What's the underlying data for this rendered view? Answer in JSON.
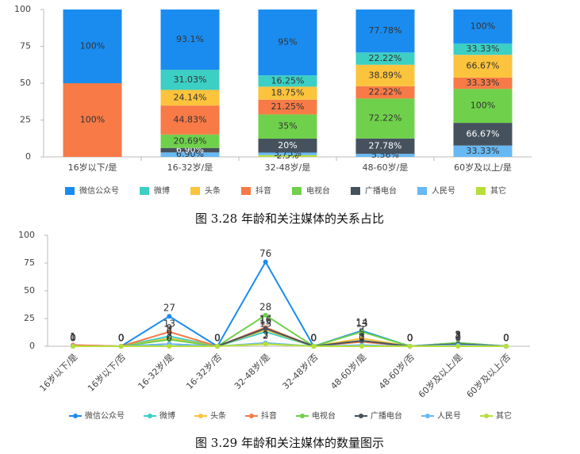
{
  "chart_data": [
    {
      "type": "stacked_percent_bar",
      "title": "图 3.28  年龄和关注媒体的关系占比",
      "categories": [
        "16岁以下/是",
        "16-32岁/是",
        "32-48岁/是",
        "48-60岁/是",
        "60岁及以上/是"
      ],
      "ylim": [
        0,
        100
      ],
      "yticks": [
        0,
        25,
        50,
        75,
        100
      ],
      "grid": false,
      "series": [
        {
          "name": "微信公众号",
          "color": "#1a8cf0",
          "values": [
            100,
            93.1,
            95,
            77.78,
            100
          ],
          "value_labels": [
            "100%",
            "93.1%",
            "95%",
            "77.78%",
            "100%"
          ]
        },
        {
          "name": "微博",
          "color": "#3ccfc4",
          "values": [
            null,
            31.03,
            16.25,
            22.22,
            33.33
          ],
          "value_labels": [
            null,
            "31.03%",
            "16.25%",
            "22.22%",
            "33.33%"
          ]
        },
        {
          "name": "头条",
          "color": "#fcc33c",
          "values": [
            null,
            24.14,
            18.75,
            38.89,
            66.67
          ],
          "value_labels": [
            null,
            "24.14%",
            "18.75%",
            "38.89%",
            "66.67%"
          ]
        },
        {
          "name": "抖音",
          "color": "#f77a47",
          "values": [
            100,
            44.83,
            21.25,
            22.22,
            33.33
          ],
          "value_labels": [
            "100%",
            "44.83%",
            "21.25%",
            "22.22%",
            "33.33%"
          ]
        },
        {
          "name": "电视台",
          "color": "#6fd14b",
          "values": [
            null,
            20.69,
            35,
            72.22,
            100
          ],
          "value_labels": [
            null,
            "20.69%",
            "35%",
            "72.22%",
            "100%"
          ]
        },
        {
          "name": "广播电台",
          "color": "#45525e",
          "values": [
            null,
            6.9,
            20,
            27.78,
            66.67
          ],
          "value_labels": [
            null,
            "6.90%",
            "20%",
            "27.78%",
            "66.67%"
          ]
        },
        {
          "name": "人民号",
          "color": "#67b9f3",
          "values": [
            null,
            6.9,
            3.75,
            5.56,
            33.33
          ],
          "value_labels": [
            null,
            "6.90%",
            "3.75%",
            "5.56%",
            "33.33%"
          ]
        },
        {
          "name": "其它",
          "color": "#b6df3b",
          "values": [
            null,
            null,
            2.5,
            null,
            null
          ],
          "value_labels": [
            null,
            null,
            "2.5%",
            null,
            null
          ]
        }
      ]
    },
    {
      "type": "line",
      "title": "图 3.29  年龄和关注媒体的数量图示",
      "categories": [
        "16岁以下/是",
        "16岁以下/否",
        "16-32岁/是",
        "16-32岁/否",
        "32-48岁/是",
        "32-48岁/否",
        "48-60岁/是",
        "48-60岁/否",
        "60岁及以上/是",
        "60岁及以上/否"
      ],
      "ylim": [
        0,
        100
      ],
      "yticks": [
        0,
        25,
        50,
        75,
        100
      ],
      "grid": false,
      "series": [
        {
          "name": "微信公众号",
          "color": "#1a8cf0",
          "values": [
            1,
            0,
            27,
            0,
            76,
            0,
            14,
            0,
            3,
            0
          ]
        },
        {
          "name": "微博",
          "color": "#3ccfc4",
          "values": [
            0,
            0,
            9,
            0,
            13,
            0,
            4,
            0,
            1,
            0
          ]
        },
        {
          "name": "头条",
          "color": "#fcc33c",
          "values": [
            0,
            0,
            7,
            0,
            15,
            0,
            7,
            0,
            2,
            0
          ]
        },
        {
          "name": "抖音",
          "color": "#f77a47",
          "values": [
            1,
            0,
            13,
            0,
            17,
            0,
            4,
            0,
            1,
            0
          ]
        },
        {
          "name": "电视台",
          "color": "#6fd14b",
          "values": [
            0,
            0,
            6,
            0,
            28,
            0,
            13,
            0,
            3,
            0
          ]
        },
        {
          "name": "广播电台",
          "color": "#45525e",
          "values": [
            0,
            0,
            2,
            0,
            16,
            0,
            5,
            0,
            2,
            0
          ]
        },
        {
          "name": "人民号",
          "color": "#67b9f3",
          "values": [
            0,
            0,
            2,
            0,
            3,
            0,
            1,
            0,
            1,
            0
          ]
        },
        {
          "name": "其它",
          "color": "#b6df3b",
          "values": [
            0,
            0,
            0,
            0,
            2,
            0,
            0,
            0,
            0,
            0
          ]
        }
      ]
    }
  ]
}
